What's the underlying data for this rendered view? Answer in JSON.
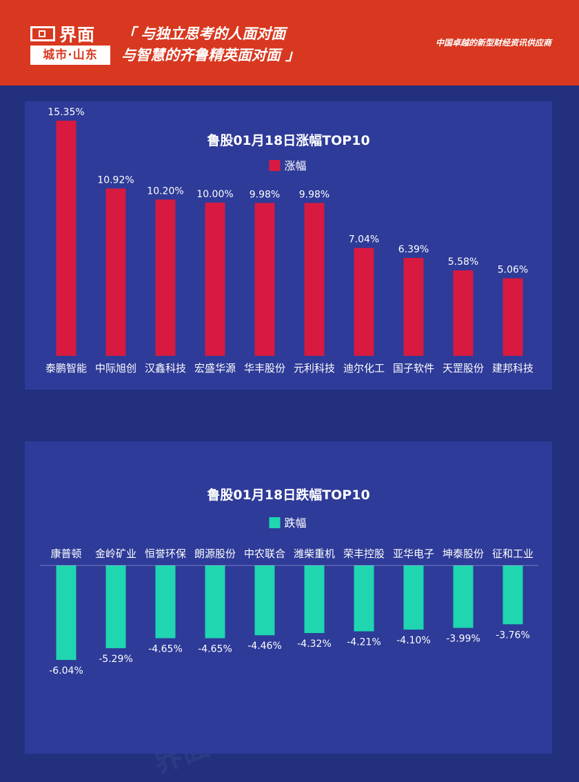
{
  "header": {
    "logo_top": "界面",
    "logo_bottom": "城市·山东",
    "slogan_line1": "「 与独立思考的人面对面",
    "slogan_line2": "与智慧的齐鲁精英面对面 」",
    "tagline": "中国卓越的新型财经资讯供应商"
  },
  "colors": {
    "background": "#22307e",
    "panel": "#2e3b98",
    "header": "#d8381f",
    "gain_bar": "#d81a40",
    "loss_bar": "#1fd6b0"
  },
  "chart_data": [
    {
      "type": "bar",
      "title": "鲁股01月18日涨幅TOP10",
      "legend": "涨幅",
      "categories": [
        "泰鹏智能",
        "中际旭创",
        "汉鑫科技",
        "宏盛华源",
        "华丰股份",
        "元利科技",
        "迪尔化工",
        "国子软件",
        "天罡股份",
        "建邦科技"
      ],
      "values": [
        15.35,
        10.92,
        10.2,
        10.0,
        9.98,
        9.98,
        7.04,
        6.39,
        5.58,
        5.06
      ],
      "labels": [
        "15.35%",
        "10.92%",
        "10.20%",
        "10.00%",
        "9.98%",
        "9.98%",
        "7.04%",
        "6.39%",
        "5.58%",
        "5.06%"
      ],
      "unit": "%"
    },
    {
      "type": "bar",
      "title": "鲁股01月18日跌幅TOP10",
      "legend": "跌幅",
      "categories": [
        "康普顿",
        "金岭矿业",
        "恒誉环保",
        "朗源股份",
        "中农联合",
        "潍柴重机",
        "荣丰控股",
        "亚华电子",
        "坤泰股份",
        "征和工业"
      ],
      "values": [
        -6.04,
        -5.29,
        -4.65,
        -4.65,
        -4.46,
        -4.32,
        -4.21,
        -4.1,
        -3.99,
        -3.76
      ],
      "labels": [
        "-6.04%",
        "-5.29%",
        "-4.65%",
        "-4.65%",
        "-4.46%",
        "-4.32%",
        "-4.21%",
        "-4.10%",
        "-3.99%",
        "-3.76%"
      ],
      "unit": "%"
    }
  ]
}
